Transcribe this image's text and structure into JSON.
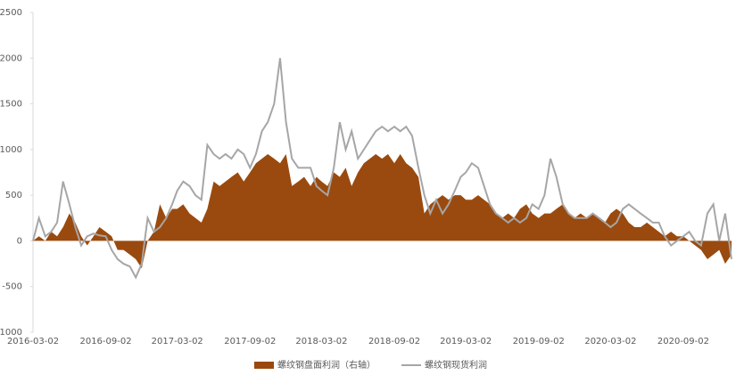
{
  "chart_data": {
    "type": "line",
    "x": [
      "2016-03-02",
      "2016-03-17",
      "2016-04-02",
      "2016-04-17",
      "2016-05-02",
      "2016-05-17",
      "2016-06-02",
      "2016-06-17",
      "2016-07-02",
      "2016-07-17",
      "2016-08-02",
      "2016-08-17",
      "2016-09-02",
      "2016-09-17",
      "2016-10-02",
      "2016-10-17",
      "2016-11-02",
      "2016-11-17",
      "2016-12-02",
      "2016-12-17",
      "2017-01-02",
      "2017-01-17",
      "2017-02-02",
      "2017-02-17",
      "2017-03-02",
      "2017-03-17",
      "2017-04-02",
      "2017-04-17",
      "2017-05-02",
      "2017-05-17",
      "2017-06-02",
      "2017-06-17",
      "2017-07-02",
      "2017-07-17",
      "2017-08-02",
      "2017-08-17",
      "2017-09-02",
      "2017-09-17",
      "2017-10-02",
      "2017-10-17",
      "2017-11-02",
      "2017-11-17",
      "2017-12-02",
      "2017-12-17",
      "2018-01-02",
      "2018-01-17",
      "2018-02-02",
      "2018-02-17",
      "2018-03-02",
      "2018-03-17",
      "2018-04-02",
      "2018-04-17",
      "2018-05-02",
      "2018-05-17",
      "2018-06-02",
      "2018-06-17",
      "2018-07-02",
      "2018-07-17",
      "2018-08-02",
      "2018-08-17",
      "2018-09-02",
      "2018-09-17",
      "2018-10-02",
      "2018-10-17",
      "2018-11-02",
      "2018-11-17",
      "2018-12-02",
      "2018-12-17",
      "2019-01-02",
      "2019-01-17",
      "2019-02-02",
      "2019-02-17",
      "2019-03-02",
      "2019-03-17",
      "2019-04-02",
      "2019-04-17",
      "2019-05-02",
      "2019-05-17",
      "2019-06-02",
      "2019-06-17",
      "2019-07-02",
      "2019-07-17",
      "2019-08-02",
      "2019-08-17",
      "2019-09-02",
      "2019-09-17",
      "2019-10-02",
      "2019-10-17",
      "2019-11-02",
      "2019-11-17",
      "2019-12-02",
      "2019-12-17",
      "2020-01-02",
      "2020-01-17",
      "2020-02-02",
      "2020-02-17",
      "2020-03-02",
      "2020-03-17",
      "2020-04-02",
      "2020-04-17",
      "2020-05-02",
      "2020-05-17",
      "2020-06-02",
      "2020-06-17",
      "2020-07-02",
      "2020-07-17",
      "2020-08-02",
      "2020-08-17",
      "2020-09-02",
      "2020-09-17",
      "2020-10-02",
      "2020-10-17",
      "2020-11-02",
      "2020-11-17",
      "2020-12-02",
      "2020-12-17",
      "2021-01-02"
    ],
    "series": [
      {
        "name": "螺纹钢盘面利润（右轴）",
        "type": "area",
        "color": "#9a4a0e",
        "values": [
          0,
          50,
          0,
          100,
          50,
          150,
          300,
          200,
          50,
          -50,
          50,
          150,
          100,
          50,
          -100,
          -100,
          -150,
          -200,
          -300,
          0,
          100,
          400,
          250,
          350,
          350,
          400,
          300,
          250,
          200,
          350,
          650,
          600,
          650,
          700,
          750,
          650,
          750,
          850,
          900,
          950,
          900,
          850,
          950,
          600,
          650,
          700,
          600,
          700,
          650,
          600,
          750,
          700,
          800,
          600,
          750,
          850,
          900,
          950,
          900,
          950,
          850,
          950,
          850,
          800,
          700,
          300,
          400,
          450,
          500,
          450,
          500,
          500,
          450,
          450,
          500,
          450,
          400,
          300,
          250,
          300,
          250,
          350,
          400,
          300,
          250,
          300,
          300,
          350,
          400,
          300,
          250,
          300,
          250,
          300,
          250,
          200,
          300,
          350,
          300,
          200,
          150,
          150,
          200,
          150,
          100,
          50,
          100,
          50,
          50,
          0,
          -50,
          -100,
          -200,
          -150,
          -100,
          -250,
          -150
        ]
      },
      {
        "name": "螺纹钢现货利润",
        "type": "line",
        "color": "#a6a6a6",
        "values": [
          0,
          250,
          50,
          100,
          200,
          650,
          400,
          150,
          -50,
          50,
          80,
          60,
          50,
          -100,
          -200,
          -250,
          -280,
          -400,
          -250,
          250,
          100,
          150,
          250,
          400,
          550,
          650,
          600,
          500,
          450,
          1050,
          950,
          900,
          950,
          900,
          1000,
          950,
          800,
          950,
          1200,
          1300,
          1500,
          2000,
          1300,
          900,
          800,
          800,
          800,
          600,
          550,
          500,
          800,
          1300,
          1000,
          1200,
          900,
          1000,
          1100,
          1200,
          1250,
          1200,
          1250,
          1200,
          1250,
          1150,
          800,
          500,
          300,
          450,
          300,
          400,
          550,
          700,
          750,
          850,
          800,
          600,
          400,
          300,
          250,
          200,
          250,
          200,
          250,
          400,
          350,
          500,
          900,
          700,
          400,
          300,
          250,
          250,
          250,
          300,
          250,
          200,
          150,
          200,
          350,
          400,
          350,
          300,
          250,
          200,
          200,
          50,
          -50,
          0,
          50,
          100,
          0,
          -50,
          300,
          400,
          0,
          300,
          -200
        ]
      }
    ],
    "xlim": [
      "2016-03-02",
      "2021-01-02"
    ],
    "xticks": [
      "2016-03-02",
      "2016-09-02",
      "2017-03-02",
      "2017-09-02",
      "2018-03-02",
      "2018-09-02",
      "2019-03-02",
      "2019-09-02",
      "2020-03-02",
      "2020-09-02"
    ],
    "ylim": [
      -1000,
      2500
    ],
    "yticks": [
      -1000,
      -500,
      0,
      500,
      1000,
      1500,
      2000,
      2500
    ]
  }
}
